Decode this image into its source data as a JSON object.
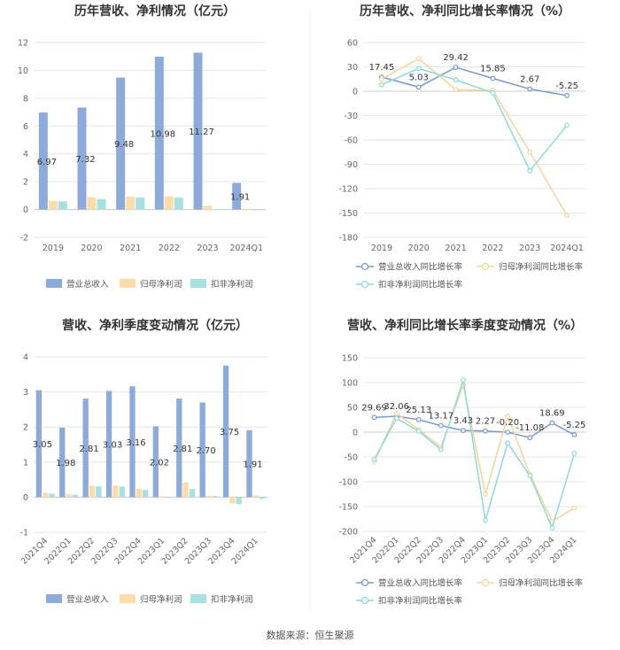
{
  "source": "数据来源：恒生聚源",
  "colors": {
    "revenue": "#8eaad8",
    "net": "#fbdcaa",
    "deducted": "#a8e0e2",
    "revLine": "#7897cc",
    "netLine": "#f7d39a",
    "dedLine": "#8ed8dc",
    "grid": "#e6e6e6",
    "axis": "#cccccc"
  },
  "legend_bar": [
    "营业总收入",
    "归母净利润",
    "扣非净利润"
  ],
  "legend_line": [
    "营业总收入同比增长率",
    "归母净利润同比增长率",
    "扣非净利润同比增长率"
  ],
  "chart_data": [
    {
      "type": "bar",
      "title": "历年营收、净利情况（亿元）",
      "categories": [
        "2019",
        "2020",
        "2021",
        "2022",
        "2023",
        "2024Q1"
      ],
      "ylim": [
        -2,
        12
      ],
      "yticks": [
        "-2",
        "0",
        "2",
        "4",
        "6",
        "8",
        "10",
        "12"
      ],
      "series": [
        {
          "name": "营业总收入",
          "values": [
            6.97,
            7.32,
            9.48,
            10.98,
            11.27,
            1.91
          ]
        },
        {
          "name": "归母净利润",
          "values": [
            0.62,
            0.88,
            0.92,
            0.95,
            0.27,
            0.05
          ]
        },
        {
          "name": "扣非净利润",
          "values": [
            0.58,
            0.75,
            0.86,
            0.85,
            0.02,
            -0.05
          ]
        }
      ],
      "labels": [
        "6.97",
        "7.32",
        "9.48",
        "10.98",
        "11.27",
        "1.91"
      ]
    },
    {
      "type": "line",
      "title": "历年营收、净利同比增长率情况（%）",
      "categories": [
        "2019",
        "2020",
        "2021",
        "2022",
        "2023",
        "2024Q1"
      ],
      "ylim": [
        -180,
        60
      ],
      "yticks": [
        "-180",
        "-150",
        "-120",
        "-90",
        "-60",
        "-30",
        "0",
        "30",
        "60"
      ],
      "series": [
        {
          "name": "营业总收入同比增长率",
          "values": [
            17.45,
            5.03,
            29.42,
            15.85,
            2.67,
            -5.25
          ]
        },
        {
          "name": "归母净利润同比增长率",
          "values": [
            15,
            40,
            2,
            1,
            -75,
            -153
          ]
        },
        {
          "name": "扣非净利润同比增长率",
          "values": [
            8,
            28,
            14,
            -2,
            -98,
            -42
          ]
        }
      ],
      "labels": [
        "17.45",
        "5.03",
        "29.42",
        "15.85",
        "2.67",
        "-5.25"
      ]
    },
    {
      "type": "bar",
      "title": "营收、净利季度变动情况（亿元）",
      "categories": [
        "2021Q4",
        "2022Q1",
        "2022Q2",
        "2022Q3",
        "2022Q4",
        "2023Q1",
        "2023Q2",
        "2023Q3",
        "2023Q4",
        "2024Q1"
      ],
      "ylim": [
        -1,
        4
      ],
      "yticks": [
        "-1",
        "0",
        "1",
        "2",
        "3",
        "4"
      ],
      "series": [
        {
          "name": "营业总收入",
          "values": [
            3.05,
            1.98,
            2.81,
            3.03,
            3.16,
            2.02,
            2.81,
            2.7,
            3.75,
            1.91
          ]
        },
        {
          "name": "归母净利润",
          "values": [
            0.12,
            0.09,
            0.32,
            0.33,
            0.24,
            0.02,
            0.42,
            0.04,
            -0.18,
            0.05
          ]
        },
        {
          "name": "扣非净利润",
          "values": [
            0.1,
            0.07,
            0.31,
            0.3,
            0.21,
            -0.01,
            0.23,
            0.03,
            -0.2,
            -0.05
          ]
        }
      ],
      "labels": [
        "3.05",
        "1.98",
        "2.81",
        "3.03",
        "3.16",
        "2.02",
        "2.81",
        "2.70",
        "3.75",
        "1.91"
      ]
    },
    {
      "type": "line",
      "title": "营收、净利同比增长率季度变动情况（%）",
      "categories": [
        "2021Q4",
        "2022Q1",
        "2022Q2",
        "2022Q3",
        "2022Q4",
        "2023Q1",
        "2023Q2",
        "2023Q3",
        "2023Q4",
        "2024Q1"
      ],
      "ylim": [
        -200,
        150
      ],
      "yticks": [
        "-200",
        "-150",
        "-100",
        "-50",
        "0",
        "50",
        "100",
        "150"
      ],
      "series": [
        {
          "name": "营业总收入同比增长率",
          "values": [
            29.69,
            32.06,
            25.13,
            13.17,
            3.43,
            2.27,
            -0.2,
            -11.08,
            18.69,
            -5.25
          ]
        },
        {
          "name": "归母净利润同比增长率",
          "values": [
            -60,
            38,
            5,
            -30,
            95,
            -125,
            32,
            -85,
            -180,
            -153
          ]
        },
        {
          "name": "扣非净利润同比增长率",
          "values": [
            -55,
            28,
            2,
            -35,
            105,
            -178,
            -22,
            -88,
            -193,
            -43
          ]
        }
      ],
      "labels": [
        "29.69",
        "32.06",
        "25.13",
        "13.17",
        "3.43",
        "2.27",
        "-0.20",
        "-11.08",
        "18.69",
        "-5.25"
      ]
    }
  ]
}
